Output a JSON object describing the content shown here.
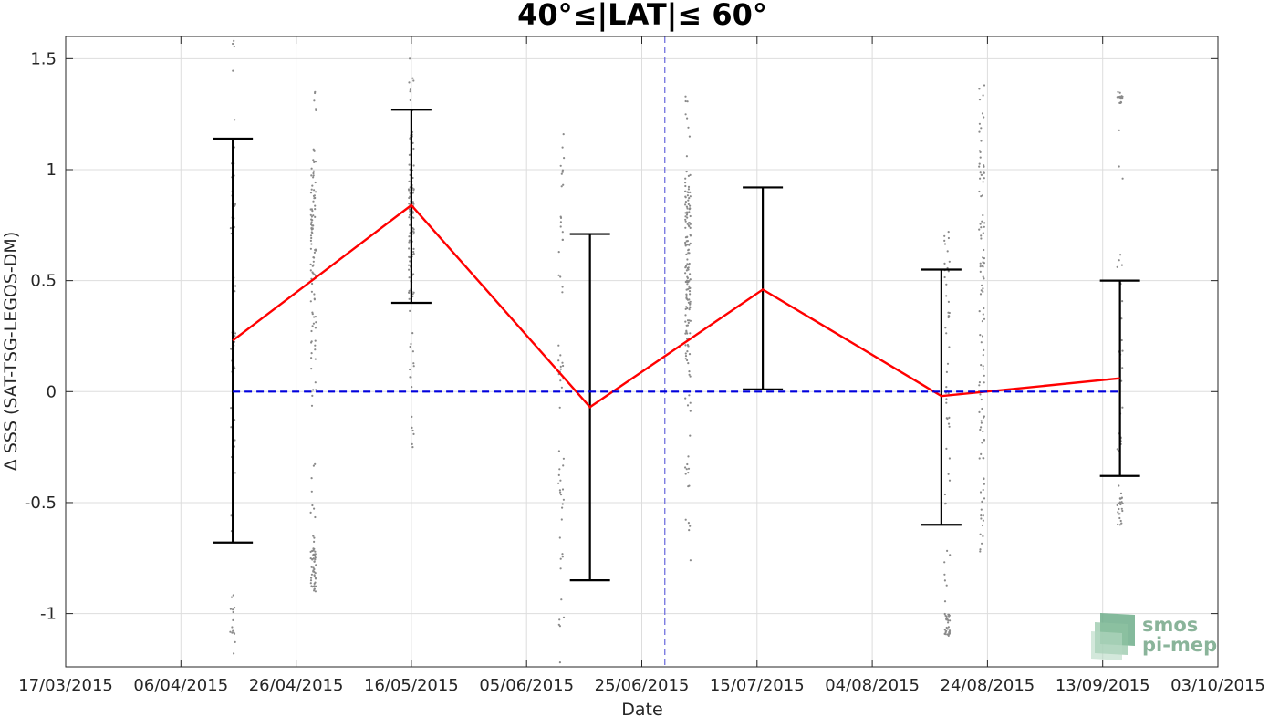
{
  "chart_data": {
    "type": "line",
    "title": "40°≤|LAT|≤ 60°",
    "xlabel": "Date",
    "ylabel": "Δ SSS (SAT-TSG-LEGOS-DM)",
    "x_range": [
      "2015-03-17",
      "2015-10-03"
    ],
    "ylim": [
      -1.24,
      1.6
    ],
    "x_ticks": [
      "2015-03-17",
      "2015-04-06",
      "2015-04-26",
      "2015-05-16",
      "2015-06-05",
      "2015-06-25",
      "2015-07-15",
      "2015-08-04",
      "2015-08-24",
      "2015-09-13",
      "2015-10-03"
    ],
    "x_tick_labels": [
      "17/03/2015",
      "06/04/2015",
      "26/04/2015",
      "16/05/2015",
      "05/06/2015",
      "25/06/2015",
      "15/07/2015",
      "04/08/2015",
      "24/08/2015",
      "13/09/2015",
      "03/10/2015"
    ],
    "y_ticks": [
      -1,
      -0.5,
      0,
      0.5,
      1,
      1.5
    ],
    "y_tick_labels": [
      "-1",
      "-0.5",
      "0",
      "0.5",
      "1",
      "1.5"
    ],
    "grid": true,
    "series": [
      {
        "style": "line",
        "color": "#ff0000",
        "x": [
          "2015-04-15",
          "2015-05-16",
          "2015-06-16",
          "2015-07-16",
          "2015-08-16",
          "2015-09-16"
        ],
        "y": [
          0.23,
          0.84,
          -0.07,
          0.46,
          -0.02,
          0.06
        ],
        "error_low": [
          -0.68,
          0.4,
          -0.85,
          0.01,
          -0.6,
          -0.38
        ],
        "error_high": [
          1.14,
          1.27,
          0.71,
          0.92,
          0.55,
          0.5
        ],
        "error_color": "#000000"
      },
      {
        "style": "dashed",
        "color": "#0000dd",
        "x": [
          "2015-04-15",
          "2015-09-16"
        ],
        "y": [
          0,
          0
        ]
      }
    ],
    "scatter_groups": [
      {
        "x": "2015-04-15",
        "y_min": -1.18,
        "y_max": 1.58,
        "clusters": [
          [
            0.7,
            1.0
          ],
          [
            -0.3,
            0.3
          ],
          [
            -1.15,
            -0.9
          ]
        ],
        "n": 70
      },
      {
        "x": "2015-04-29",
        "y_min": -0.9,
        "y_max": 1.35,
        "clusters": [
          [
            0.1,
            0.9
          ],
          [
            0.5,
            1.1
          ],
          [
            -0.9,
            -0.7
          ]
        ],
        "n": 160
      },
      {
        "x": "2015-05-16",
        "y_min": -0.25,
        "y_max": 1.5,
        "clusters": [
          [
            0.4,
            1.2
          ],
          [
            0.6,
            1.0
          ]
        ],
        "n": 130
      },
      {
        "x": "2015-06-11",
        "y_min": -1.22,
        "y_max": 1.16,
        "clusters": [
          [
            -0.8,
            -0.3
          ],
          [
            0.0,
            0.2
          ],
          [
            0.6,
            1.1
          ]
        ],
        "n": 60
      },
      {
        "x": "2015-07-03",
        "y_min": -0.76,
        "y_max": 1.33,
        "clusters": [
          [
            0.05,
            0.9
          ],
          [
            0.3,
            1.0
          ]
        ],
        "n": 170
      },
      {
        "x": "2015-08-17",
        "y_min": -1.1,
        "y_max": 0.72,
        "clusters": [
          [
            -0.2,
            0.7
          ],
          [
            -1.1,
            -1.0
          ]
        ],
        "n": 80
      },
      {
        "x": "2015-08-23",
        "y_min": -0.72,
        "y_max": 1.38,
        "clusters": [
          [
            -0.7,
            0.4
          ],
          [
            0.4,
            1.1
          ]
        ],
        "n": 110
      },
      {
        "x": "2015-09-16",
        "y_min": -0.6,
        "y_max": 1.35,
        "clusters": [
          [
            -0.3,
            0.3
          ],
          [
            -0.6,
            -0.45
          ],
          [
            1.3,
            1.35
          ]
        ],
        "n": 70
      }
    ],
    "vertical_marker": {
      "x": "2015-06-29",
      "color": "#6666dd",
      "style": "dashed"
    }
  },
  "logo": {
    "line1": "smos",
    "line2": "pi-mep"
  }
}
